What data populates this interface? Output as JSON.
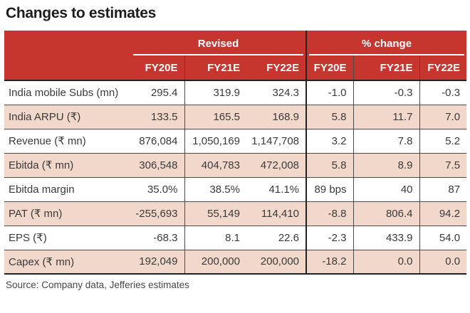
{
  "title": "Changes to estimates",
  "source": "Source: Company data, Jefferies estimates",
  "colors": {
    "header_red": "#c7352f",
    "row_pink": "#f2d8cb",
    "text": "#3a3a3a",
    "border_dark": "#4a4a4a",
    "border_heavy": "#222222"
  },
  "chart_data": {
    "type": "table",
    "title": "Changes to estimates",
    "groups": [
      "Revised",
      "% change"
    ],
    "col_headers": [
      "FY20E",
      "FY21E",
      "FY22E",
      "FY20E",
      "FY21E",
      "FY22E"
    ],
    "rows": [
      {
        "label": "India mobile Subs (mn)",
        "values": [
          "295.4",
          "319.9",
          "324.3",
          "-1.0",
          "-0.3",
          "-0.3"
        ]
      },
      {
        "label": "India ARPU (₹)",
        "values": [
          "133.5",
          "165.5",
          "168.9",
          "5.8",
          "11.7",
          "7.0"
        ]
      },
      {
        "label": "Revenue (₹ mn)",
        "values": [
          "876,084",
          "1,050,169",
          "1,147,708",
          "3.2",
          "7.8",
          "5.2"
        ]
      },
      {
        "label": "Ebitda (₹ mn)",
        "values": [
          "306,548",
          "404,783",
          "472,008",
          "5.8",
          "8.9",
          "7.5"
        ]
      },
      {
        "label": "Ebitda margin",
        "values": [
          "35.0%",
          "38.5%",
          "41.1%",
          "89 bps",
          "40",
          "87"
        ]
      },
      {
        "label": "PAT (₹ mn)",
        "values": [
          "-255,693",
          "55,149",
          "114,410",
          "-8.8",
          "806.4",
          "94.2"
        ]
      },
      {
        "label": "EPS (₹)",
        "values": [
          "-68.3",
          "8.1",
          "22.6",
          "-2.3",
          "433.9",
          "54.0"
        ]
      },
      {
        "label": "Capex (₹ mn)",
        "values": [
          "192,049",
          "200,000",
          "200,000",
          "-18.2",
          "0.0",
          "0.0"
        ]
      }
    ]
  }
}
